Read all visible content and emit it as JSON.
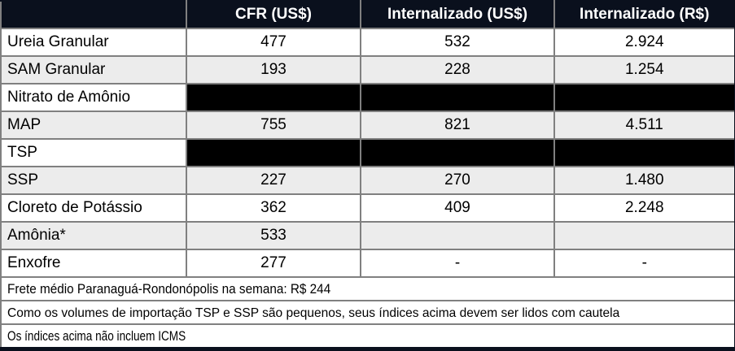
{
  "table": {
    "columns": {
      "product": "",
      "cfr_usd": "CFR (US$)",
      "internalizado_usd": "Internalizado (US$)",
      "internalizado_brl": "Internalizado (R$)"
    },
    "rows": [
      {
        "label": "Ureia Granular",
        "cfr": "477",
        "int_usd": "532",
        "int_brl": "2.924",
        "redacted": false
      },
      {
        "label": "SAM Granular",
        "cfr": "193",
        "int_usd": "228",
        "int_brl": "1.254",
        "redacted": false
      },
      {
        "label": "Nitrato de Amônio",
        "redacted": true
      },
      {
        "label": "MAP",
        "cfr": "755",
        "int_usd": "821",
        "int_brl": "4.511",
        "redacted": false
      },
      {
        "label": "TSP",
        "redacted": true
      },
      {
        "label": "SSP",
        "cfr": "227",
        "int_usd": "270",
        "int_brl": "1.480",
        "redacted": false
      },
      {
        "label": "Cloreto de Potássio",
        "cfr": "362",
        "int_usd": "409",
        "int_brl": "2.248",
        "redacted": false
      },
      {
        "label": "Amônia*",
        "cfr": "533",
        "int_usd": "",
        "int_brl": "",
        "redacted": false
      },
      {
        "label": "Enxofre",
        "cfr": "277",
        "int_usd": "-",
        "int_brl": "-",
        "redacted": false
      }
    ],
    "footnotes": [
      "Frete médio Paranaguá-Rondonópolis na semana: R$ 244",
      "Como os volumes de importação TSP e SSP são pequenos, seus índices acima devem ser lidos com cautela",
      "Os índices acima não incluem ICMS"
    ]
  },
  "colors": {
    "header_bg": "#0a101d",
    "header_text": "#ffffff",
    "stripe_bg": "#ececec",
    "redacted_bg": "#000000",
    "grid_border": "#808080",
    "column_divider_blue": "#4e7694",
    "outer_border_dark": "#0a101d",
    "body_text": "#000000"
  }
}
